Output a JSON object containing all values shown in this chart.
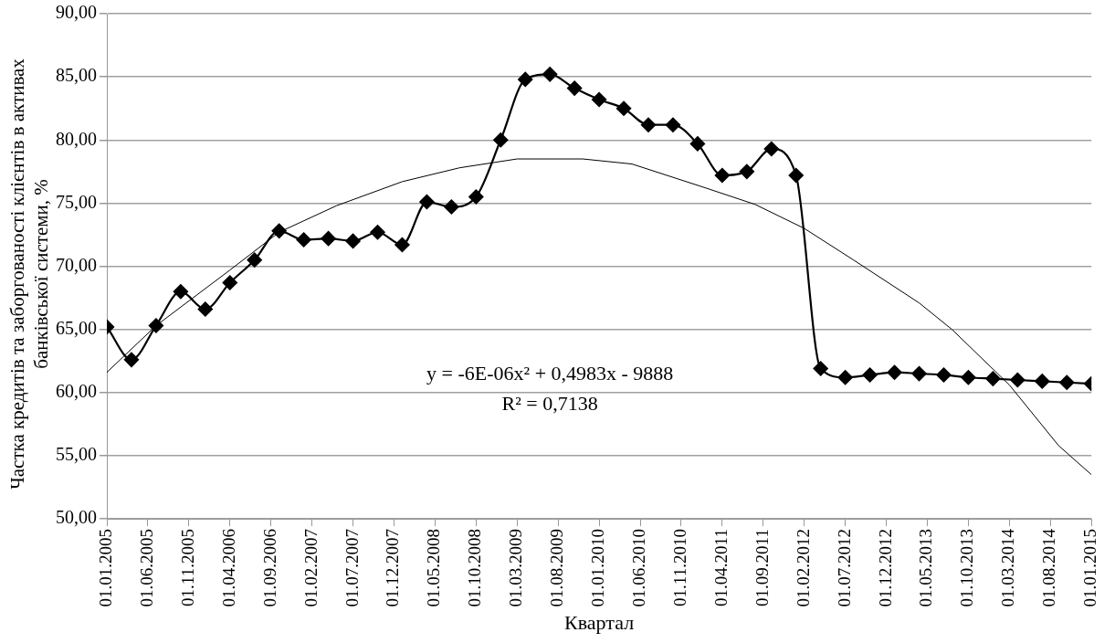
{
  "chart_data": {
    "type": "line",
    "xlabel": "Квартал",
    "ylabel": "Частка кредитів та заборгованості клієнтів в активах банківської системи, %",
    "x": [
      "2005-01-01",
      "2005-04-01",
      "2005-07-01",
      "2005-10-01",
      "2006-01-01",
      "2006-04-01",
      "2006-07-01",
      "2006-10-01",
      "2007-01-01",
      "2007-04-01",
      "2007-07-01",
      "2007-10-01",
      "2008-01-01",
      "2008-04-01",
      "2008-07-01",
      "2008-10-01",
      "2009-01-01",
      "2009-04-01",
      "2009-07-01",
      "2009-10-01",
      "2010-01-01",
      "2010-04-01",
      "2010-07-01",
      "2010-10-01",
      "2011-01-01",
      "2011-04-01",
      "2011-07-01",
      "2011-10-01",
      "2012-01-01",
      "2012-04-01",
      "2012-07-01",
      "2012-10-01",
      "2013-01-01",
      "2013-04-01",
      "2013-07-01",
      "2013-10-01",
      "2014-01-01",
      "2014-04-01",
      "2014-07-01",
      "2014-10-01",
      "2015-01-01"
    ],
    "series": [
      {
        "color": "#000000",
        "marker": "diamond",
        "values": [
          65.2,
          62.6,
          65.3,
          68.0,
          66.6,
          68.7,
          70.5,
          72.8,
          72.1,
          72.2,
          72.0,
          72.7,
          71.7,
          75.1,
          74.7,
          75.5,
          80.0,
          84.8,
          85.2,
          84.1,
          83.2,
          82.5,
          81.2,
          81.2,
          79.7,
          77.2,
          77.5,
          79.3,
          77.2,
          61.9,
          61.2,
          61.4,
          61.6,
          61.5,
          61.4,
          61.2,
          61.1,
          61.0,
          60.9,
          60.8,
          60.7
        ]
      },
      {
        "type": "line",
        "color": "#000000",
        "marker": "none",
        "x": [
          "2005-01-01",
          "2005-07-01",
          "2006-04-01",
          "2006-10-01",
          "2007-05-01",
          "2008-01-01",
          "2008-08-01",
          "2009-03-01",
          "2009-11-01",
          "2010-05-01",
          "2011-02-01",
          "2011-08-01",
          "2012-02-01",
          "2012-08-01",
          "2013-04-01",
          "2013-08-01",
          "2014-03-01",
          "2014-09-01",
          "2015-01-01"
        ],
        "values": [
          61.6,
          65.3,
          69.7,
          72.7,
          74.8,
          76.7,
          77.8,
          78.5,
          78.5,
          78.1,
          76.2,
          74.9,
          73.0,
          70.5,
          67.1,
          65.0,
          60.6,
          55.8,
          53.5
        ]
      }
    ],
    "xlim": [
      "2005-01-01",
      "2015-01-01"
    ],
    "xticks": [
      {
        "value": "2005-01-01",
        "label": "01.01.2005"
      },
      {
        "value": "2005-06-01",
        "label": "01.06.2005"
      },
      {
        "value": "2005-11-01",
        "label": "01.11.2005"
      },
      {
        "value": "2006-04-01",
        "label": "01.04.2006"
      },
      {
        "value": "2006-09-01",
        "label": "01.09.2006"
      },
      {
        "value": "2007-02-01",
        "label": "01.02.2007"
      },
      {
        "value": "2007-07-01",
        "label": "01.07.2007"
      },
      {
        "value": "2007-12-01",
        "label": "01.12.2007"
      },
      {
        "value": "2008-05-01",
        "label": "01.05.2008"
      },
      {
        "value": "2008-10-01",
        "label": "01.10.2008"
      },
      {
        "value": "2009-03-01",
        "label": "01.03.2009"
      },
      {
        "value": "2009-08-01",
        "label": "01.08.2009"
      },
      {
        "value": "2010-01-01",
        "label": "01.01.2010"
      },
      {
        "value": "2010-06-01",
        "label": "01.06.2010"
      },
      {
        "value": "2010-11-01",
        "label": "01.11.2010"
      },
      {
        "value": "2011-04-01",
        "label": "01.04.2011"
      },
      {
        "value": "2011-09-01",
        "label": "01.09.2011"
      },
      {
        "value": "2012-02-01",
        "label": "01.02.2012"
      },
      {
        "value": "2012-07-01",
        "label": "01.07.2012"
      },
      {
        "value": "2012-12-01",
        "label": "01.12.2012"
      },
      {
        "value": "2013-05-01",
        "label": "01.05.2013"
      },
      {
        "value": "2013-10-01",
        "label": "01.10.2013"
      },
      {
        "value": "2014-03-01",
        "label": "01.03.2014"
      },
      {
        "value": "2014-08-01",
        "label": "01.08.2014"
      },
      {
        "value": "2015-01-01",
        "label": "01.01.2015"
      }
    ],
    "ylim": [
      50,
      90
    ],
    "yticks": [
      {
        "value": 50,
        "label": "50,00"
      },
      {
        "value": 55,
        "label": "55,00"
      },
      {
        "value": 60,
        "label": "60,00"
      },
      {
        "value": 65,
        "label": "65,00"
      },
      {
        "value": 70,
        "label": "70,00"
      },
      {
        "value": 75,
        "label": "75,00"
      },
      {
        "value": 80,
        "label": "80,00"
      },
      {
        "value": 85,
        "label": "85,00"
      },
      {
        "value": 90,
        "label": "90,00"
      }
    ],
    "grid": "y",
    "legend": false,
    "annotations": [
      "y = -6E-06x² + 0,4983x - 9888",
      "R² = 0,7138"
    ]
  }
}
